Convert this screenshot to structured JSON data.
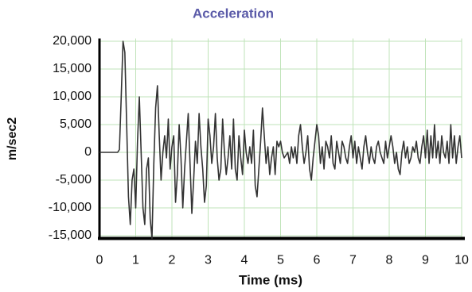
{
  "chart_data": {
    "type": "line",
    "title": "Acceleration",
    "x_label": "Time (ms)",
    "y_label": "m/sec2",
    "x": [
      0,
      0.5,
      0.55,
      0.6,
      0.65,
      0.7,
      0.75,
      0.8,
      0.85,
      0.9,
      0.95,
      1,
      1.05,
      1.1,
      1.15,
      1.2,
      1.25,
      1.3,
      1.35,
      1.4,
      1.45,
      1.5,
      1.55,
      1.6,
      1.65,
      1.7,
      1.75,
      1.8,
      1.85,
      1.9,
      1.95,
      2,
      2.05,
      2.1,
      2.15,
      2.2,
      2.25,
      2.3,
      2.35,
      2.4,
      2.45,
      2.5,
      2.55,
      2.6,
      2.65,
      2.7,
      2.75,
      2.8,
      2.85,
      2.9,
      2.95,
      3,
      3.05,
      3.1,
      3.15,
      3.2,
      3.25,
      3.3,
      3.35,
      3.4,
      3.45,
      3.5,
      3.55,
      3.6,
      3.65,
      3.7,
      3.75,
      3.8,
      3.85,
      3.9,
      3.95,
      4,
      4.05,
      4.1,
      4.15,
      4.2,
      4.25,
      4.3,
      4.35,
      4.4,
      4.45,
      4.5,
      4.55,
      4.6,
      4.65,
      4.7,
      4.75,
      4.8,
      4.85,
      4.9,
      4.95,
      5,
      5.05,
      5.1,
      5.2,
      5.25,
      5.3,
      5.35,
      5.4,
      5.45,
      5.5,
      5.55,
      5.6,
      5.65,
      5.7,
      5.75,
      5.8,
      5.85,
      5.9,
      5.95,
      6,
      6.05,
      6.1,
      6.15,
      6.2,
      6.25,
      6.3,
      6.35,
      6.4,
      6.45,
      6.5,
      6.55,
      6.6,
      6.65,
      6.7,
      6.75,
      6.8,
      6.85,
      6.9,
      6.95,
      7,
      7.05,
      7.1,
      7.15,
      7.2,
      7.25,
      7.3,
      7.35,
      7.4,
      7.45,
      7.5,
      7.55,
      7.6,
      7.65,
      7.7,
      7.75,
      7.8,
      7.85,
      7.9,
      7.95,
      8,
      8.05,
      8.1,
      8.15,
      8.2,
      8.25,
      8.3,
      8.35,
      8.4,
      8.45,
      8.5,
      8.55,
      8.6,
      8.65,
      8.7,
      8.75,
      8.8,
      8.85,
      8.9,
      8.95,
      9,
      9.05,
      9.1,
      9.15,
      9.2,
      9.25,
      9.3,
      9.35,
      9.4,
      9.45,
      9.5,
      9.55,
      9.6,
      9.65,
      9.7,
      9.75,
      9.8,
      9.85,
      9.9,
      9.95,
      10
    ],
    "values": [
      0,
      0,
      500,
      10000,
      20000,
      18000,
      5000,
      -8000,
      -13000,
      -5000,
      -3000,
      -10000,
      2000,
      10000,
      0,
      -10000,
      -13000,
      -3000,
      -1000,
      -12000,
      -15500,
      -2000,
      8000,
      12000,
      3000,
      -5000,
      0,
      3000,
      -1000,
      6000,
      -3000,
      1000,
      3000,
      -9000,
      -4000,
      5000,
      -1000,
      -10000,
      -3000,
      2000,
      7000,
      -2000,
      -11000,
      -5000,
      2000,
      -2000,
      7000,
      1000,
      -3000,
      -9000,
      -6000,
      6000,
      3000,
      -2000,
      1000,
      7000,
      -1000,
      -5000,
      -3000,
      6000,
      0,
      -4000,
      -1000,
      3000,
      -3000,
      6000,
      -3000,
      -5000,
      3000,
      -1000,
      -4000,
      4000,
      0,
      -2000,
      1000,
      -2000,
      4000,
      -6000,
      -8000,
      -3000,
      2000,
      8000,
      3000,
      -2000,
      1000,
      -4000,
      -1000,
      1000,
      -4000,
      2000,
      1000,
      2000,
      0,
      -1000,
      0,
      -2000,
      1000,
      -1000,
      1000,
      -2000,
      3000,
      5000,
      1000,
      -2000,
      0,
      3000,
      -3000,
      -5000,
      -1000,
      2000,
      5000,
      3000,
      -2000,
      1000,
      -3000,
      2000,
      1000,
      -1000,
      3000,
      -2000,
      -3000,
      2000,
      0,
      -2000,
      2000,
      1000,
      -1000,
      -2000,
      1000,
      3000,
      -1000,
      2000,
      -2000,
      1000,
      -1000,
      -3000,
      1000,
      3000,
      0,
      -2000,
      1000,
      -1000,
      -2000,
      1000,
      2000,
      0,
      -1000,
      -2000,
      2000,
      -1000,
      1000,
      3000,
      1000,
      -2000,
      0,
      -3000,
      -4000,
      0,
      2000,
      -1000,
      1000,
      -2000,
      -1000,
      1000,
      0,
      2000,
      -1000,
      -2000,
      1000,
      3000,
      -1000,
      4000,
      -2000,
      3000,
      -1000,
      5000,
      -1000,
      2000,
      -2000,
      3000,
      0,
      -1000,
      2000,
      -2000,
      5000,
      -1000,
      3000,
      -2000,
      1000,
      3000,
      -1000
    ],
    "color": "#333333",
    "xlim": [
      0,
      10
    ],
    "xticks": [
      0,
      1,
      2,
      3,
      4,
      5,
      6,
      7,
      8,
      9,
      10
    ],
    "ylim": [
      -15500,
      20500
    ],
    "yticks": [
      {
        "value": -15000,
        "label": "-15,000"
      },
      {
        "value": -10000,
        "label": "-10,000"
      },
      {
        "value": -5000,
        "label": "-5,000"
      },
      0,
      {
        "value": 5000,
        "label": "5,000"
      },
      {
        "value": 10000,
        "label": "10,000"
      },
      {
        "value": 15000,
        "label": "15,000"
      },
      {
        "value": 20000,
        "label": "20,000"
      }
    ],
    "grid": true
  }
}
